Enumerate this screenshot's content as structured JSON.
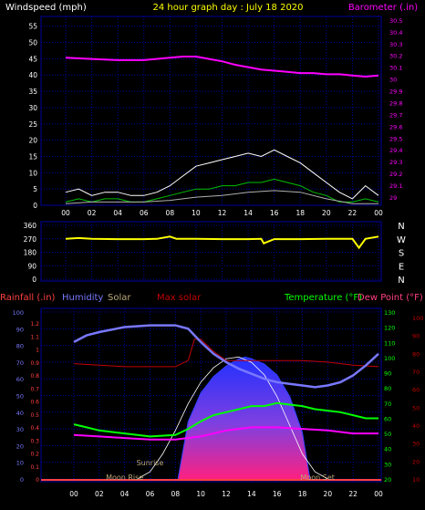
{
  "header": {
    "left_label": "Windspeed (mph)",
    "title": "24 hour graph day : July 18 2020",
    "right_label": "Barometer (.in)"
  },
  "colors": {
    "background": "#000000",
    "grid": "#0000a0",
    "axis_text": "#ffffff",
    "wind_gust": "#ffffff",
    "wind_speed": "#00c000",
    "wind_avg": "#b0b0b0",
    "barometer": "#ff00ff",
    "direction": "#ffff00",
    "rainfall": "#ff4040",
    "humidity": "#7878ff",
    "solar": "#b8a878",
    "max_solar": "#c00000",
    "temperature": "#00ff00",
    "dew_point": "#ff4080",
    "max_solar_curve": "#ffffff"
  },
  "chart_data": [
    {
      "type": "line",
      "name": "wind-barometer-chart",
      "x_ticks": [
        "00",
        "02",
        "04",
        "06",
        "08",
        "10",
        "12",
        "14",
        "16",
        "18",
        "20",
        "22",
        "00"
      ],
      "y_left": {
        "label": "Windspeed (mph)",
        "ticks": [
          0,
          5,
          10,
          15,
          20,
          25,
          30,
          35,
          40,
          45,
          50,
          55
        ],
        "lim": [
          0,
          58
        ]
      },
      "y_right": {
        "label": "Barometer (.in)",
        "ticks": [
          "29",
          "29.1",
          "29.2",
          "29.3",
          "29.4",
          "29.5",
          "29.6",
          "29.7",
          "29.8",
          "29.9",
          "30",
          "30.1",
          "30.2",
          "30.3",
          "30.4",
          "30.5"
        ],
        "lim": [
          28.93,
          30.53
        ]
      },
      "series": [
        {
          "name": "Barometer",
          "axis": "right",
          "x": [
            0,
            2,
            4,
            6,
            8,
            9,
            10,
            11,
            12,
            13,
            14,
            15,
            16,
            17,
            18,
            19,
            20,
            21,
            22,
            23,
            24
          ],
          "values": [
            30.18,
            30.17,
            30.16,
            30.16,
            30.18,
            30.19,
            30.19,
            30.17,
            30.15,
            30.12,
            30.1,
            30.08,
            30.07,
            30.06,
            30.05,
            30.05,
            30.04,
            30.04,
            30.03,
            30.02,
            30.03
          ]
        },
        {
          "name": "Wind gust",
          "axis": "left",
          "x": [
            0,
            1,
            2,
            3,
            4,
            5,
            6,
            7,
            8,
            9,
            10,
            11,
            12,
            13,
            14,
            15,
            16,
            17,
            18,
            19,
            20,
            21,
            22,
            23,
            24
          ],
          "values": [
            4,
            5,
            3,
            4,
            4,
            3,
            3,
            4,
            6,
            9,
            12,
            13,
            14,
            15,
            16,
            15,
            17,
            15,
            13,
            10,
            7,
            4,
            2,
            6,
            3
          ]
        },
        {
          "name": "Wind speed",
          "axis": "left",
          "x": [
            0,
            1,
            2,
            3,
            4,
            5,
            6,
            7,
            8,
            9,
            10,
            11,
            12,
            13,
            14,
            15,
            16,
            17,
            18,
            19,
            20,
            21,
            22,
            23,
            24
          ],
          "values": [
            1,
            2,
            1,
            2,
            2,
            1,
            1,
            2,
            3,
            4,
            5,
            5,
            6,
            6,
            7,
            7,
            8,
            7,
            6,
            4,
            3,
            1,
            1,
            2,
            1
          ]
        },
        {
          "name": "Average wind",
          "axis": "left",
          "x": [
            0,
            2,
            4,
            6,
            8,
            9,
            10,
            12,
            14,
            16,
            18,
            20,
            22,
            24
          ],
          "values": [
            0.5,
            1,
            1,
            1,
            1.5,
            2,
            2.5,
            3,
            4,
            4.5,
            4,
            2,
            0.5,
            0.5
          ]
        }
      ]
    },
    {
      "type": "line",
      "name": "wind-direction-chart",
      "x_ticks": [
        "00",
        "02",
        "04",
        "06",
        "08",
        "10",
        "12",
        "14",
        "16",
        "18",
        "20",
        "22",
        "00"
      ],
      "y_left": {
        "ticks": [
          0,
          90,
          180,
          270,
          360
        ],
        "lim": [
          0,
          360
        ]
      },
      "y_right_labels": [
        "N",
        "W",
        "S",
        "E",
        "N"
      ],
      "series": [
        {
          "name": "Wind direction",
          "x": [
            0,
            1,
            2,
            4,
            6,
            7,
            8,
            8.5,
            9,
            10,
            12,
            14,
            15,
            15.2,
            16,
            18,
            20,
            22,
            22.5,
            23,
            24
          ],
          "values": [
            270,
            275,
            270,
            268,
            268,
            270,
            285,
            270,
            270,
            270,
            268,
            268,
            270,
            240,
            268,
            268,
            270,
            270,
            210,
            270,
            285
          ]
        }
      ]
    },
    {
      "type": "line",
      "name": "temperature-humidity-solar-chart",
      "legend": [
        "Rainfall (.in)",
        "Humidity",
        "Solar",
        "Max solar",
        "Temperature (°F)",
        "Dew Point (°F)"
      ],
      "x_ticks": [
        "00",
        "02",
        "04",
        "06",
        "08",
        "10",
        "12",
        "14",
        "16",
        "18",
        "20",
        "22",
        "00"
      ],
      "y_humidity": {
        "ticks": [
          0,
          10,
          20,
          30,
          40,
          50,
          60,
          70,
          80,
          90,
          100
        ],
        "lim": [
          0,
          100
        ]
      },
      "y_rain": {
        "ticks": [
          "0",
          "0.1",
          "0.2",
          "0.3",
          "0.4",
          "0.5",
          "0.6",
          "0.7",
          "0.8",
          "0.9",
          "1",
          "1.1",
          "1.2"
        ],
        "lim": [
          0,
          1.2
        ]
      },
      "y_temp": {
        "ticks": [
          20,
          30,
          40,
          50,
          60,
          70,
          80,
          90,
          100,
          110,
          120,
          130
        ],
        "lim": [
          20,
          130
        ]
      },
      "y_solar": {
        "ticks": [
          10,
          20,
          30,
          40,
          50,
          60,
          70,
          80,
          90,
          100
        ],
        "lim": [
          10,
          100
        ]
      },
      "annotations": [
        "Sunrise",
        "Moon Rise",
        "Moon Set"
      ],
      "series": [
        {
          "name": "Humidity",
          "axis": "humidity",
          "x": [
            0,
            1,
            2,
            4,
            6,
            8,
            9,
            10,
            11,
            12,
            13,
            14,
            15,
            16,
            17,
            18,
            19,
            20,
            21,
            22,
            23,
            24
          ],
          "values": [
            82,
            86,
            88,
            91,
            92,
            92,
            90,
            82,
            75,
            70,
            66,
            63,
            60,
            58,
            57,
            56,
            55,
            56,
            58,
            62,
            68,
            75
          ]
        },
        {
          "name": "Temperature",
          "axis": "temp",
          "x": [
            0,
            1,
            2,
            4,
            6,
            8,
            9,
            10,
            11,
            12,
            13,
            14,
            15,
            16,
            17,
            18,
            19,
            20,
            21,
            22,
            23,
            24
          ],
          "values": [
            56,
            54,
            52,
            50,
            48,
            49,
            53,
            58,
            62,
            64,
            66,
            68,
            68,
            70,
            69,
            68,
            66,
            65,
            64,
            62,
            60,
            60
          ]
        },
        {
          "name": "Dew Point",
          "axis": "temp",
          "x": [
            0,
            2,
            4,
            6,
            8,
            10,
            12,
            14,
            16,
            18,
            20,
            22,
            24
          ],
          "values": [
            49,
            48,
            47,
            46,
            46,
            48,
            52,
            54,
            54,
            53,
            52,
            50,
            50
          ]
        },
        {
          "name": "Max solar",
          "axis": "temp",
          "x": [
            0,
            2,
            4,
            6,
            8,
            9,
            9.5,
            10,
            11,
            12,
            14,
            16,
            18,
            20,
            22,
            24
          ],
          "values": [
            96,
            95,
            94,
            94,
            94,
            98,
            112,
            112,
            104,
            98,
            98,
            98,
            98,
            97,
            95,
            94
          ]
        },
        {
          "name": "Solar",
          "axis": "solar",
          "x": [
            8.2,
            9,
            10,
            11,
            12,
            13,
            13.5,
            14,
            15,
            16,
            17,
            18,
            18.6
          ],
          "values": [
            10,
            42,
            58,
            67,
            73,
            77,
            78,
            77,
            74,
            68,
            56,
            36,
            10
          ]
        },
        {
          "name": "Max solar curve",
          "axis": "solar",
          "x": [
            5,
            6,
            7,
            8,
            9,
            10,
            11,
            12,
            13,
            14,
            15,
            16,
            17,
            18,
            19,
            20
          ],
          "values": [
            10,
            14,
            24,
            37,
            52,
            64,
            72,
            77,
            78,
            75,
            68,
            56,
            40,
            24,
            14,
            10
          ]
        }
      ]
    }
  ]
}
